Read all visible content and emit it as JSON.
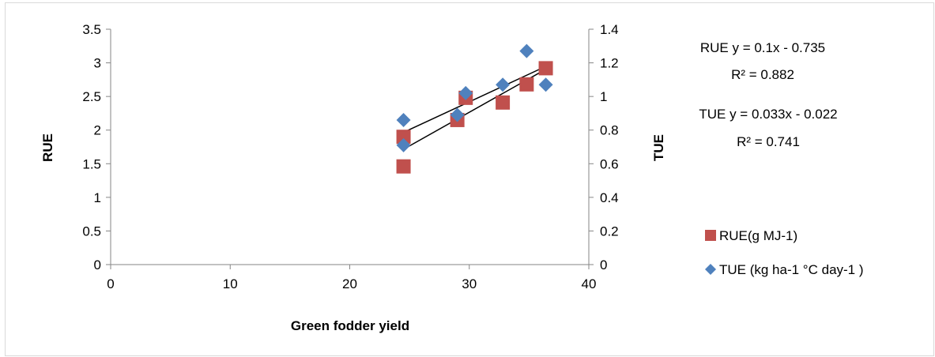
{
  "chart_data": {
    "type": "scatter",
    "xlabel": "Green fodder yield",
    "ylabel": "RUE",
    "y2label": "TUE",
    "xlim": [
      0,
      40
    ],
    "ylim": [
      0,
      3.5
    ],
    "y2lim": [
      0,
      1.4
    ],
    "x_ticks": [
      "0",
      "10",
      "20",
      "30",
      "40"
    ],
    "y_ticks": [
      "0",
      "0.5",
      "1",
      "1.5",
      "2",
      "2.5",
      "3",
      "3.5"
    ],
    "y2_ticks": [
      "0",
      "0.2",
      "0.4",
      "0.6",
      "0.8",
      "1",
      "1.2",
      "1.4"
    ],
    "series": [
      {
        "name": "RUE(g MJ-1)",
        "axis": "left",
        "marker": "square",
        "color": "#c0504d",
        "points": [
          {
            "x": 24.5,
            "y": 1.46
          },
          {
            "x": 24.5,
            "y": 1.9
          },
          {
            "x": 29.0,
            "y": 2.15
          },
          {
            "x": 29.7,
            "y": 2.48
          },
          {
            "x": 32.8,
            "y": 2.41
          },
          {
            "x": 34.8,
            "y": 2.68
          },
          {
            "x": 36.4,
            "y": 2.92
          }
        ],
        "trendline": {
          "slope": 0.1,
          "intercept": -0.735,
          "x_range": [
            24.5,
            36.4
          ]
        }
      },
      {
        "name": "TUE (kg ha-1 °C day-1 )",
        "axis": "right",
        "marker": "diamond",
        "color": "#4f81bd",
        "points": [
          {
            "x": 24.5,
            "y": 0.86
          },
          {
            "x": 24.5,
            "y": 0.71
          },
          {
            "x": 29.0,
            "y": 0.89
          },
          {
            "x": 29.7,
            "y": 1.02
          },
          {
            "x": 32.8,
            "y": 1.07
          },
          {
            "x": 34.8,
            "y": 1.27
          },
          {
            "x": 36.4,
            "y": 1.07
          }
        ],
        "trendline": {
          "slope": 0.033,
          "intercept": -0.022,
          "x_range": [
            24.5,
            36.4
          ]
        }
      }
    ],
    "annotations": [
      {
        "id": "rue_eq",
        "text": "RUE y = 0.1x - 0.735"
      },
      {
        "id": "rue_r2",
        "text": "R² = 0.882"
      },
      {
        "id": "tue_eq",
        "text": "TUE y = 0.033x - 0.022"
      },
      {
        "id": "tue_r2",
        "text": "R² = 0.741"
      }
    ],
    "legend_position": "right",
    "grid": false
  }
}
